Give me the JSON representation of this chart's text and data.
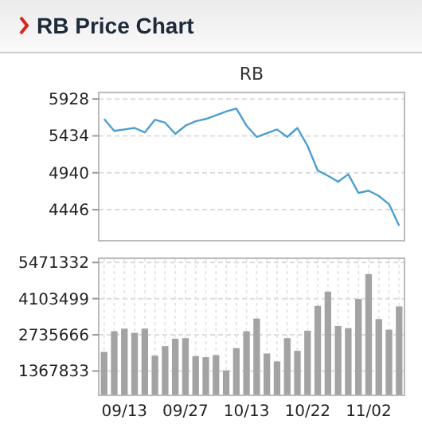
{
  "chart_data": [
    {
      "type": "line",
      "title": "RB Price Chart",
      "subtitle": "RB",
      "categories": [
        null,
        null,
        null,
        null,
        null,
        null,
        null,
        null,
        null,
        null,
        null,
        null,
        null,
        null,
        null,
        null,
        null,
        null,
        null,
        null,
        null,
        null,
        null,
        null,
        null,
        null,
        null,
        null,
        null,
        null
      ],
      "series": [
        {
          "color": "#4a9fd0",
          "values": [
            5660,
            5500,
            5520,
            5540,
            5480,
            5650,
            5610,
            5460,
            5570,
            5630,
            5660,
            5710,
            5760,
            5800,
            5570,
            5420,
            5470,
            5520,
            5420,
            5540,
            5300,
            4970,
            4900,
            4820,
            4920,
            4670,
            4700,
            4630,
            4520,
            4230
          ]
        }
      ],
      "ylim": [
        4030,
        6015
      ],
      "yticks": [
        4446,
        4940,
        5434,
        5928
      ],
      "grid": "y",
      "marker": "none",
      "line_style": "solid",
      "tick_labels": "y"
    },
    {
      "type": "bar",
      "categories": [
        null,
        null,
        "09/13",
        null,
        null,
        null,
        null,
        null,
        "09/27",
        null,
        null,
        null,
        null,
        null,
        "10/13",
        null,
        null,
        null,
        null,
        null,
        "10/22",
        null,
        null,
        null,
        null,
        null,
        "11/02",
        null,
        null,
        null
      ],
      "series": [
        {
          "color": "#a3a3a3",
          "values": [
            2090000,
            2870000,
            2970000,
            2810000,
            2970000,
            1950000,
            2310000,
            2590000,
            2610000,
            1930000,
            1890000,
            1970000,
            1390000,
            2230000,
            2870000,
            3350000,
            2030000,
            1730000,
            2610000,
            2130000,
            2890000,
            3830000,
            4370000,
            3070000,
            2990000,
            4090000,
            5030000,
            3330000,
            2930000,
            3810000
          ]
        }
      ],
      "ylim": [
        446000,
        5631000
      ],
      "yticks": [
        1367833,
        2735666,
        4103499,
        5471332
      ],
      "grid": true
    }
  ]
}
